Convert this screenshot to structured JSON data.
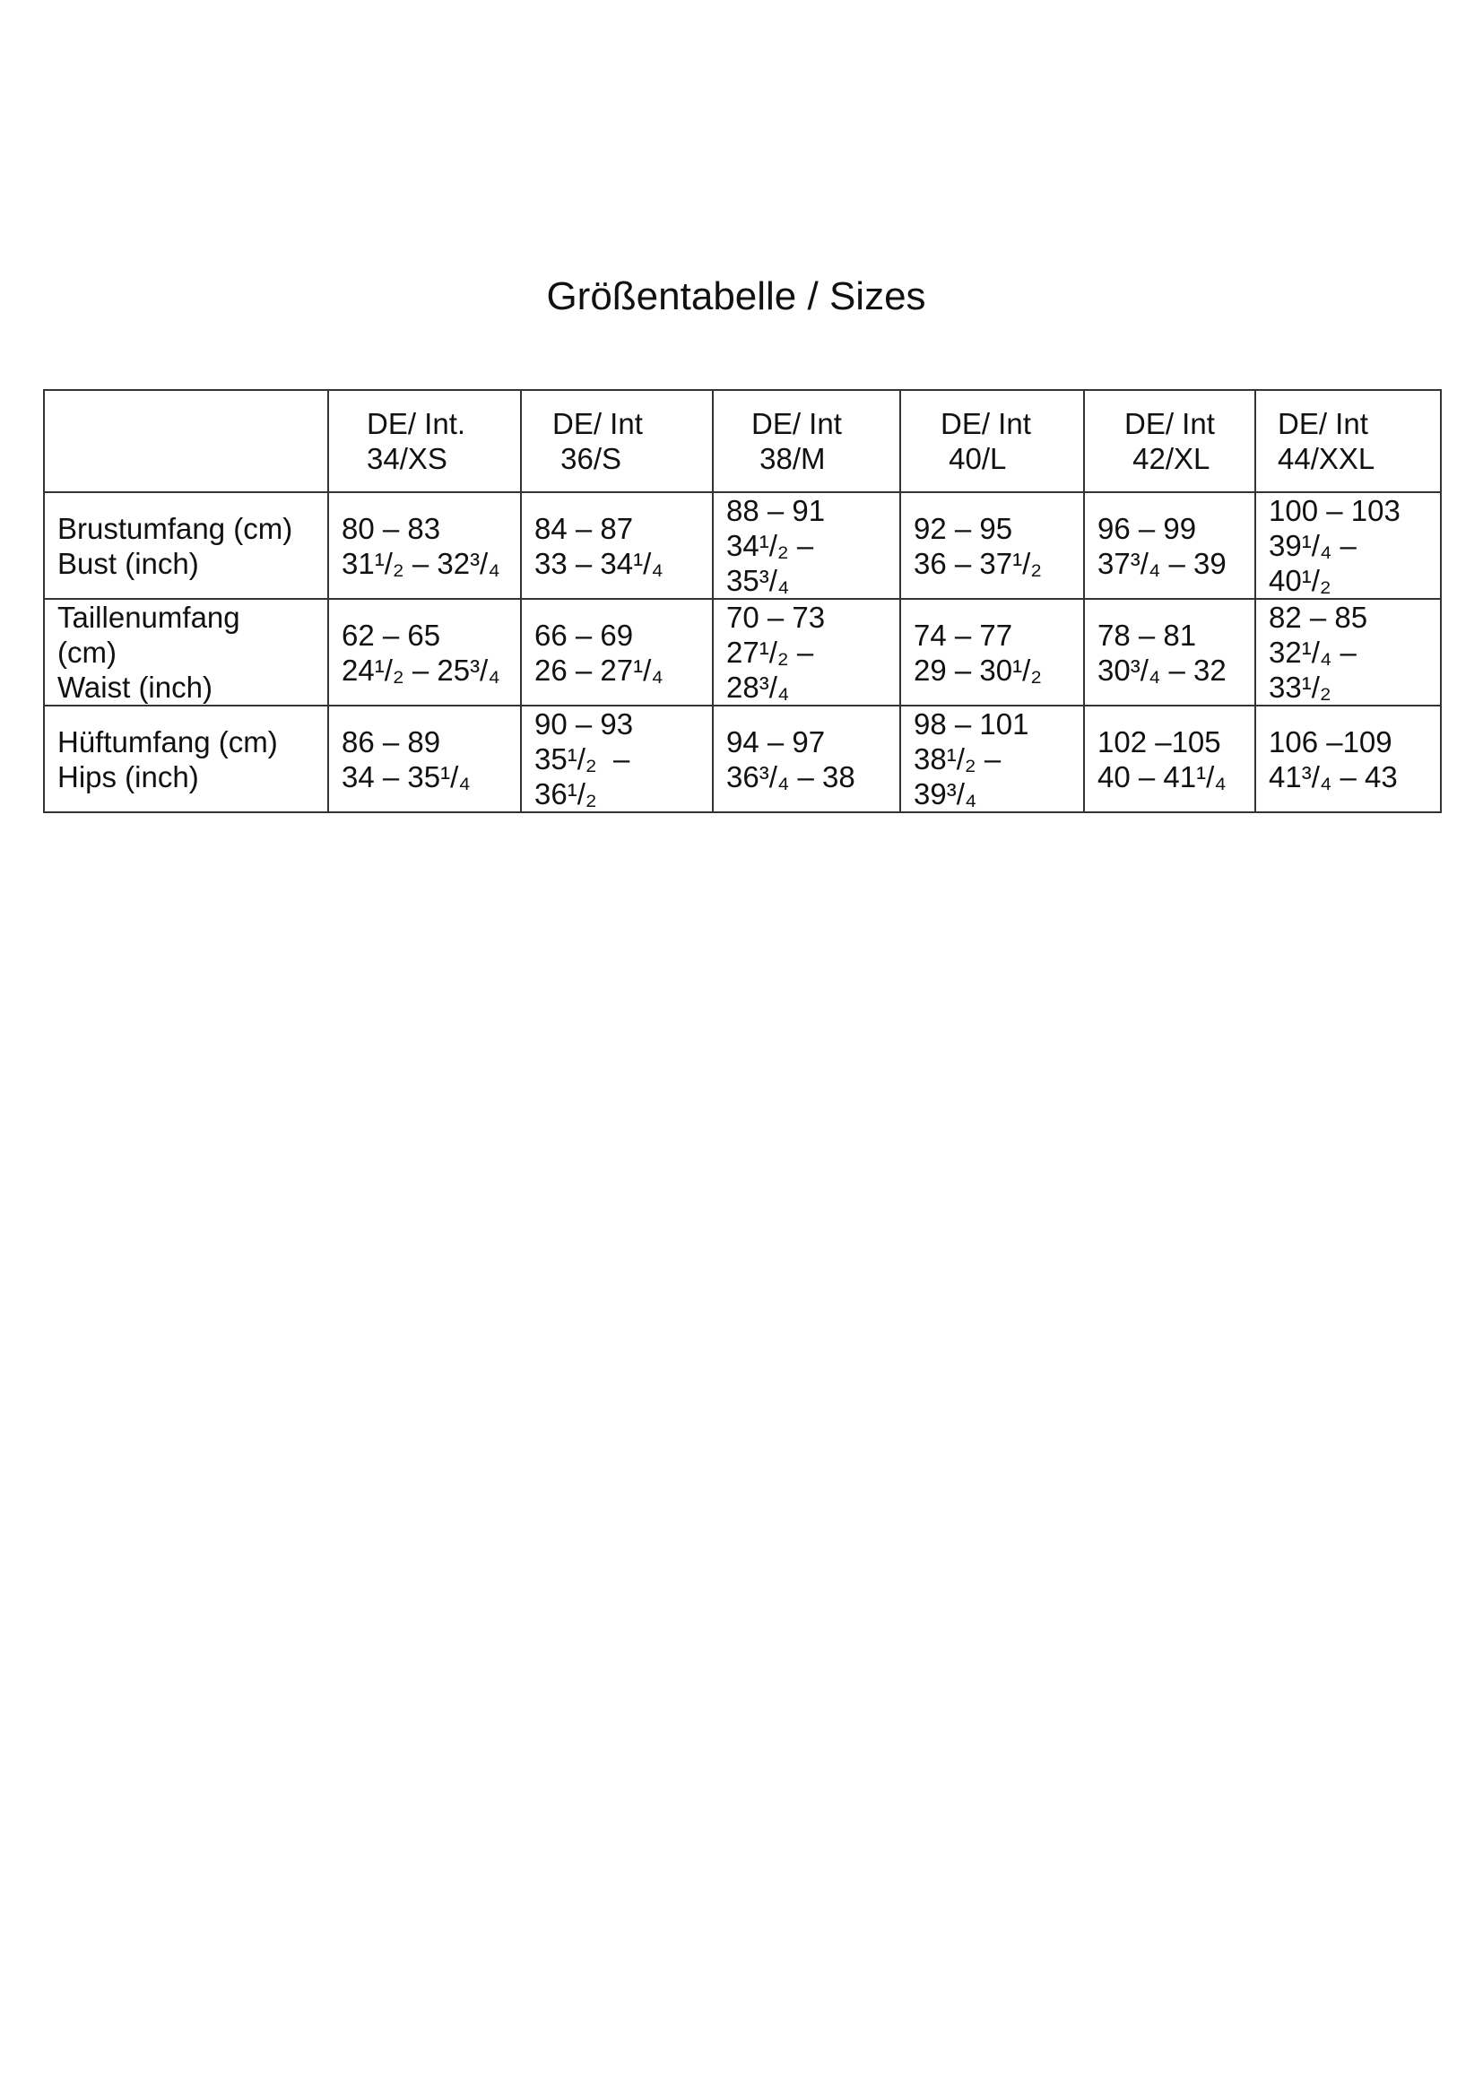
{
  "title": "Größentabelle / Sizes",
  "table": {
    "headers": [
      {
        "line1": "DE/ Int.",
        "line2": "34/XS"
      },
      {
        "line1": "DE/ Int",
        "line2": " 36/S"
      },
      {
        "line1": "DE/ Int",
        "line2": " 38/M"
      },
      {
        "line1": "DE/ Int",
        "line2": " 40/L"
      },
      {
        "line1": "DE/ Int",
        "line2": " 42/XL"
      },
      {
        "line1": "DE/ Int",
        "line2": "44/XXL"
      }
    ],
    "rows": [
      {
        "label": [
          "Brustumfang (cm)",
          "Bust (inch)"
        ],
        "cells": [
          [
            "80 – 83",
            "31¹/₂ – 32³/₄"
          ],
          [
            "84 – 87",
            "33 – 34¹/₄"
          ],
          [
            "88 – 91",
            "34¹/₂ –",
            "35³/₄"
          ],
          [
            "92 – 95",
            "36 – 37¹/₂"
          ],
          [
            "96 – 99",
            "37³/₄ – 39"
          ],
          [
            "100 – 103",
            "39¹/₄ –",
            "40¹/₂"
          ]
        ]
      },
      {
        "label": [
          "Taillenumfang",
          "(cm)",
          "Waist (inch)"
        ],
        "cells": [
          [
            "62 – 65",
            "24¹/₂ – 25³/₄"
          ],
          [
            "66 – 69",
            "26 – 27¹/₄"
          ],
          [
            "70 – 73",
            "27¹/₂ –",
            "28³/₄"
          ],
          [
            "74 – 77",
            "29 – 30¹/₂"
          ],
          [
            "78 – 81",
            "30³/₄ – 32"
          ],
          [
            "82 – 85",
            "32¹/₄ –",
            "33¹/₂"
          ]
        ]
      },
      {
        "label": [
          "Hüftumfang (cm)",
          "Hips (inch)"
        ],
        "cells": [
          [
            "86 – 89",
            "34 – 35¹/₄"
          ],
          [
            "90 – 93",
            "35¹/₂  –",
            "36¹/₂"
          ],
          [
            "94 – 97",
            "36³/₄ – 38"
          ],
          [
            "98 – 101",
            "38¹/₂ –",
            "39³/₄"
          ],
          [
            "102 –105",
            "40 – 41¹/₄"
          ],
          [
            "106 –109",
            "41³/₄ – 43"
          ]
        ]
      }
    ]
  }
}
